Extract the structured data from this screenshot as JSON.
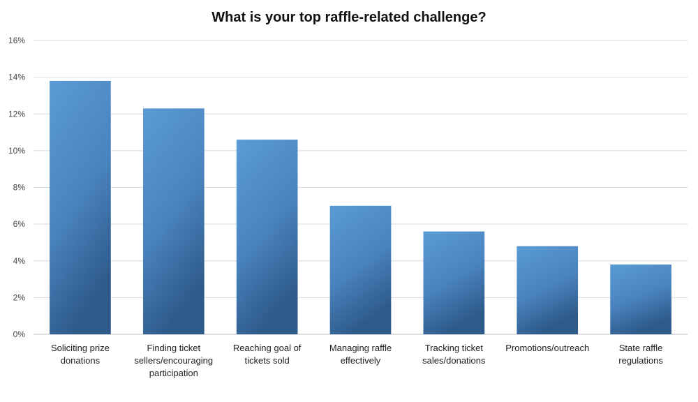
{
  "chart_data": {
    "type": "bar",
    "title": "What is your top raffle-related challenge?",
    "categories": [
      [
        "Soliciting prize",
        "donations"
      ],
      [
        "Finding ticket",
        "sellers/encouraging",
        "participation"
      ],
      [
        "Reaching goal of",
        "tickets sold"
      ],
      [
        "Managing raffle",
        "effectively"
      ],
      [
        "Tracking ticket",
        "sales/donations"
      ],
      [
        "Promotions/outreach"
      ],
      [
        "State raffle",
        "regulations"
      ]
    ],
    "values": [
      13.8,
      12.3,
      10.6,
      7.0,
      5.6,
      4.8,
      3.8
    ],
    "ylim": [
      0,
      16
    ],
    "yticks": [
      "0%",
      "2%",
      "4%",
      "6%",
      "8%",
      "10%",
      "12%",
      "14%",
      "16%"
    ],
    "grid": true,
    "colors": {
      "bar_top": "#5b9bd5",
      "bar_bottom": "#2e5a8a",
      "grid": "#d9d9d9"
    }
  }
}
